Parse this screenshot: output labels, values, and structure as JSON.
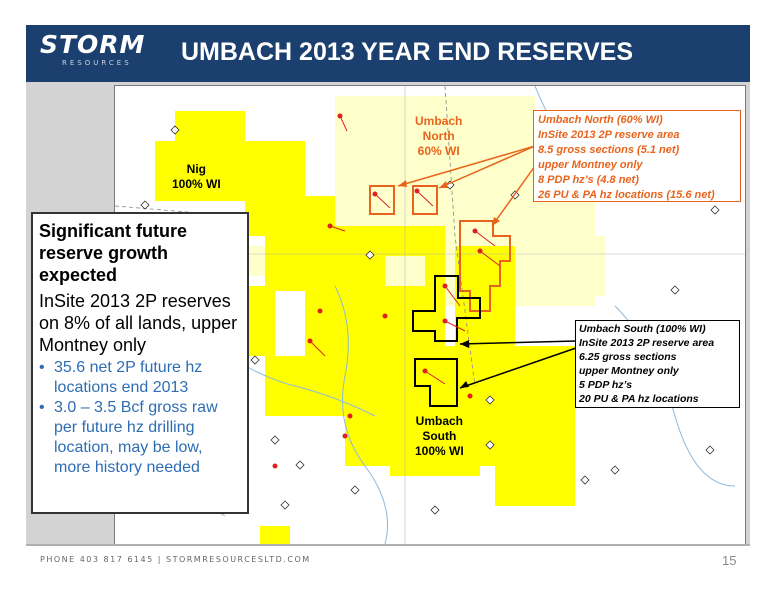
{
  "header": {
    "logo": "STORM",
    "logo_sub": "RESOURCES",
    "title": "UMBACH 2013 YEAR END RESERVES"
  },
  "callout": {
    "heading": "Significant future reserve growth expected",
    "body": "InSite 2013 2P reserves on 8% of all lands, upper Montney only",
    "bullets": [
      "35.6 net 2P future hz locations end 2013",
      "3.0 – 3.5 Bcf gross raw per future hz drilling location, may be low, more history needed"
    ],
    "bullet_color": "#2e6db4"
  },
  "map_labels": {
    "nig": [
      "Nig",
      "100% WI"
    ],
    "umbach_north": [
      "Umbach",
      "North",
      "60% WI"
    ],
    "umbach_south": [
      "Umbach",
      "South",
      "100% WI"
    ]
  },
  "north_box": {
    "lines": [
      "Umbach North (60% WI)",
      "InSite 2013 2P reserve area",
      "8.5 gross sections (5.1 net)",
      "upper Montney only",
      "8 PDP hz’s (4.8 net)",
      "26 PU & PA hz locations (15.6 net)"
    ],
    "color": "#e8641c"
  },
  "south_box": {
    "lines": [
      "Umbach South (100% WI)",
      "InSite 2013 2P reserve area",
      "6.25 gross sections",
      "upper Montney only",
      "5 PDP hz’s",
      "20 PU & PA hz locations"
    ]
  },
  "footer": {
    "text": "PHONE 403 817 6145  |  STORMRESOURCESLTD.COM",
    "page": "15"
  },
  "colors": {
    "header_bg": "#1b3f6e",
    "land_yellow": "#ffff00",
    "land_pale": "#ffffcc",
    "north_outline": "#e8641c",
    "south_outline": "#000000",
    "wells_red": "#e02020"
  }
}
